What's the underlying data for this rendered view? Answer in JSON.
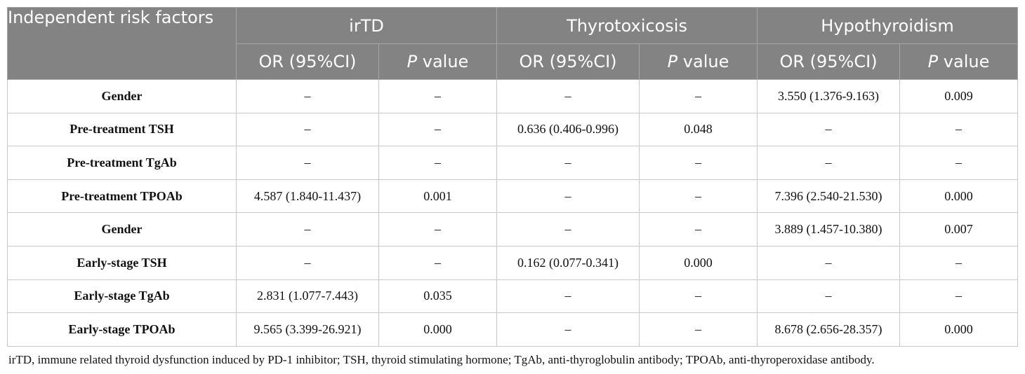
{
  "header": {
    "risk_factors": "Independent risk factors",
    "groups": [
      "irTD",
      "Thyrotoxicosis",
      "Hypothyroidism"
    ],
    "or_label": "OR (95%CI)",
    "p_italic": "P",
    "p_rest": " value"
  },
  "rows": [
    {
      "factor": "Gender",
      "cells": [
        "–",
        "–",
        "–",
        "–",
        "3.550 (1.376-9.163)",
        "0.009"
      ]
    },
    {
      "factor": "Pre-treatment TSH",
      "cells": [
        "–",
        "–",
        "0.636 (0.406-0.996)",
        "0.048",
        "–",
        "–"
      ]
    },
    {
      "factor": "Pre-treatment TgAb",
      "cells": [
        "–",
        "–",
        "–",
        "–",
        "–",
        "–"
      ]
    },
    {
      "factor": "Pre-treatment TPOAb",
      "cells": [
        "4.587 (1.840-11.437)",
        "0.001",
        "–",
        "–",
        "7.396 (2.540-21.530)",
        "0.000"
      ]
    },
    {
      "factor": "Gender",
      "cells": [
        "–",
        "–",
        "–",
        "–",
        "3.889 (1.457-10.380)",
        "0.007"
      ]
    },
    {
      "factor": "Early-stage TSH",
      "cells": [
        "–",
        "–",
        "0.162 (0.077-0.341)",
        "0.000",
        "–",
        "–"
      ]
    },
    {
      "factor": "Early-stage TgAb",
      "cells": [
        "2.831 (1.077-7.443)",
        "0.035",
        "–",
        "–",
        "–",
        "–"
      ]
    },
    {
      "factor": "Early-stage TPOAb",
      "cells": [
        "9.565 (3.399-26.921)",
        "0.000",
        "–",
        "–",
        "8.678 (2.656-28.357)",
        "0.000"
      ]
    }
  ],
  "footnote": "irTD, immune related thyroid dysfunction induced by PD-1 inhibitor; TSH, thyroid stimulating hormone; TgAb, anti-thyroglobulin antibody; TPOAb, anti-thyroperoxidase antibody."
}
